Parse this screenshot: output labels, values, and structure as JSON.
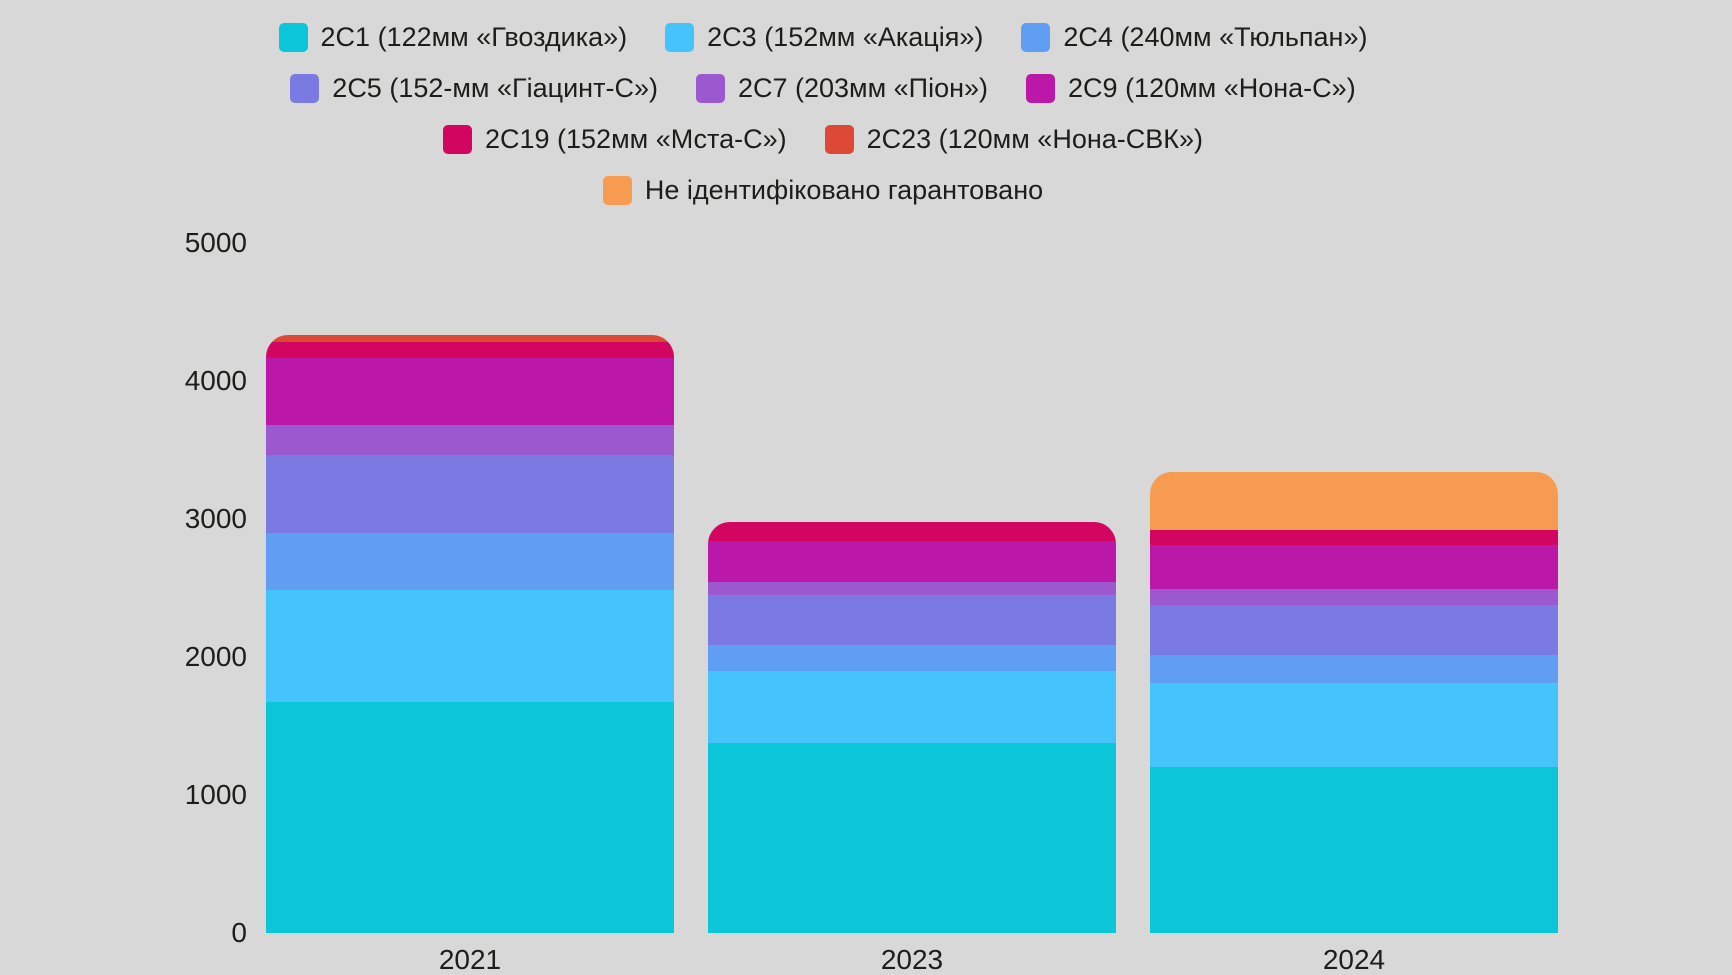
{
  "background_color": "#D8D8D8",
  "text_color": "#1D1D1B",
  "chart_data": {
    "type": "bar",
    "stacked": true,
    "orientation": "vertical",
    "title": "",
    "xlabel": "",
    "ylabel": "",
    "grid": false,
    "legend_position": "top",
    "categories": [
      "2021",
      "2023",
      "2024"
    ],
    "series": [
      {
        "name": "2С1 (122мм «Гвоздика»)",
        "color": "#0AC6D8",
        "values": [
          1675,
          1375,
          1200
        ]
      },
      {
        "name": "2С3 (152мм «Акація»)",
        "color": "#45C3FB",
        "values": [
          810,
          520,
          610
        ]
      },
      {
        "name": "2С4 (240мм «Тюльпан»)",
        "color": "#5F9EF3",
        "values": [
          410,
          195,
          205
        ]
      },
      {
        "name": "2С5 (152-мм «Гіацинт-С»)",
        "color": "#7B79E2",
        "values": [
          570,
          360,
          360
        ]
      },
      {
        "name": "2С7 (203мм «Піон»)",
        "color": "#9C58CE",
        "values": [
          215,
          95,
          120
        ]
      },
      {
        "name": "2С9 (120мм «Нона-С»)",
        "color": "#BB17A8",
        "values": [
          485,
          295,
          315
        ]
      },
      {
        "name": "2С19 (152мм «Мста-С»)",
        "color": "#D20560",
        "values": [
          115,
          135,
          110
        ]
      },
      {
        "name": "2С23 (120мм «Нона-СВК»)",
        "color": "#DE4937",
        "values": [
          50,
          0,
          0
        ]
      },
      {
        "name": "Не ідентифіковано гарантовано",
        "color": "#F79B51",
        "values": [
          0,
          0,
          420
        ]
      }
    ],
    "totals": [
      4330,
      2975,
      3340
    ],
    "y_axis": {
      "min": 0,
      "max": 5000,
      "step": 1000,
      "ticks": [
        "5000",
        "4000",
        "3000",
        "2000",
        "1000",
        "0"
      ]
    },
    "legend_rows": [
      [
        0,
        1,
        2
      ],
      [
        3,
        4,
        5
      ],
      [
        6,
        7
      ],
      [
        8
      ]
    ]
  }
}
